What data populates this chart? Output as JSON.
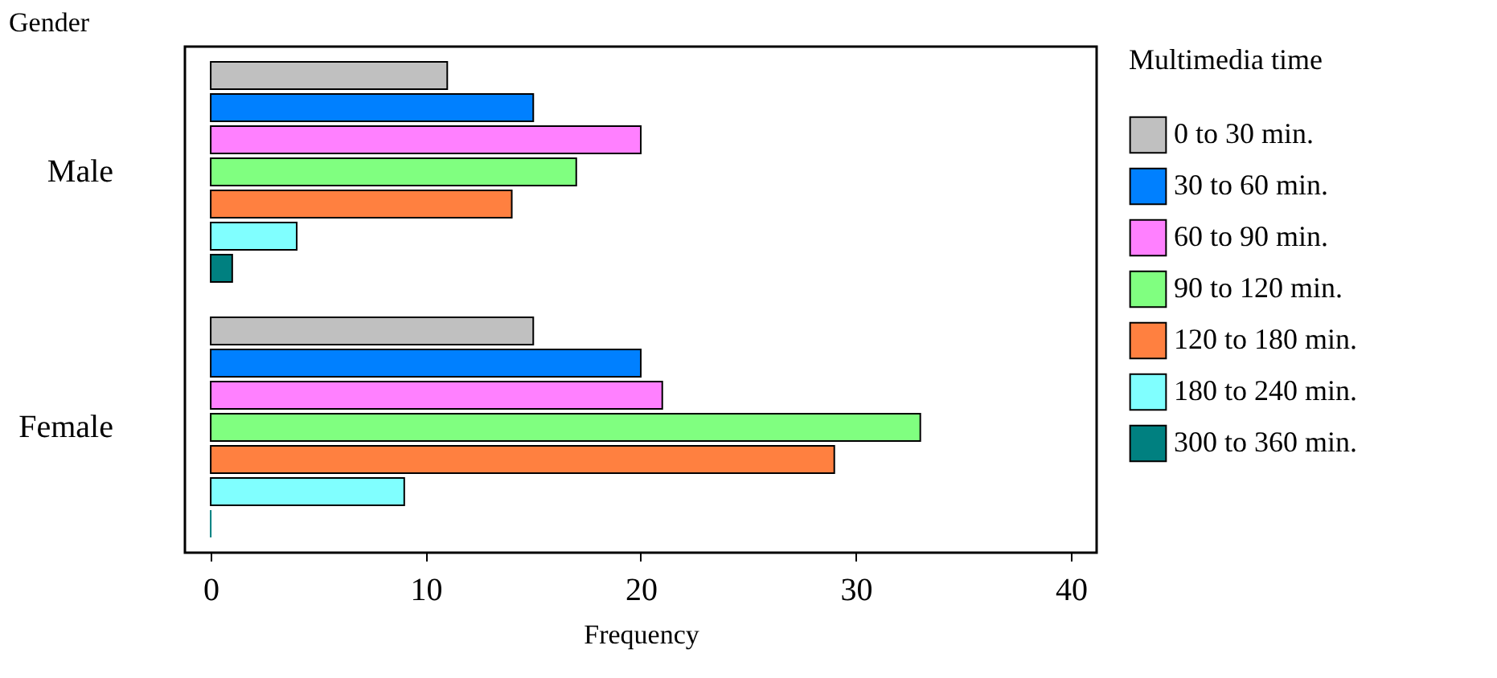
{
  "chart_data": {
    "type": "bar",
    "orientation": "horizontal",
    "xlabel": "Frequency",
    "ylabel": "Gender",
    "legend_title": "Multimedia time",
    "categories": [
      "Male",
      "Female"
    ],
    "series": [
      {
        "name": "0 to 30 min.",
        "color": "#c0c0c0",
        "values": [
          11,
          15
        ]
      },
      {
        "name": "30 to 60 min.",
        "color": "#0080ff",
        "values": [
          15,
          20
        ]
      },
      {
        "name": "60 to 90 min.",
        "color": "#ff80ff",
        "values": [
          20,
          21
        ]
      },
      {
        "name": "90 to 120 min.",
        "color": "#80ff80",
        "values": [
          17,
          33
        ]
      },
      {
        "name": "120 to 180 min.",
        "color": "#ff8040",
        "values": [
          14,
          29
        ]
      },
      {
        "name": "180 to 240 min.",
        "color": "#80ffff",
        "values": [
          4,
          9
        ]
      },
      {
        "name": "300 to 360 min.",
        "color": "#008080",
        "values": [
          1,
          0
        ]
      }
    ],
    "xlim": [
      -1.2,
      41.2
    ],
    "xticks": [
      0,
      10,
      20,
      30,
      40
    ],
    "grid": false,
    "legend": "right"
  }
}
